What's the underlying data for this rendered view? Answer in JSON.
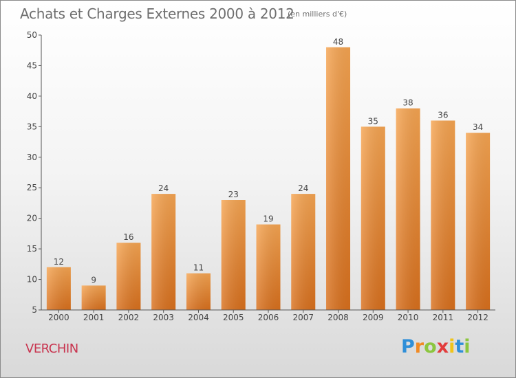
{
  "page": {
    "title": "Achats et Charges Externes 2000 à 2012",
    "unit_note": "(en milliers d'€)",
    "commune": "VERCHIN",
    "logo": {
      "letters": [
        "P",
        "r",
        "o",
        "x",
        "i",
        "t",
        "i"
      ],
      "colors": [
        "#2f8fd8",
        "#f08a24",
        "#8cc63f",
        "#e23c3c",
        "#f0c419",
        "#2f8fd8",
        "#8cc63f"
      ]
    }
  },
  "chart_data": {
    "type": "bar",
    "title": "Achats et Charges Externes 2000 à 2012",
    "subtitle": "(en milliers d'€)",
    "categories": [
      "2000",
      "2001",
      "2002",
      "2003",
      "2004",
      "2005",
      "2006",
      "2007",
      "2008",
      "2009",
      "2010",
      "2011",
      "2012"
    ],
    "values": [
      12,
      9,
      16,
      24,
      11,
      23,
      19,
      24,
      48,
      35,
      38,
      36,
      34
    ],
    "ylim": [
      5,
      50
    ],
    "yticks": [
      5,
      10,
      15,
      20,
      25,
      30,
      35,
      40,
      45,
      50
    ],
    "xlabel": "",
    "ylabel": "",
    "grid": false,
    "legend": "none",
    "bar_color": "#ee8b31"
  }
}
